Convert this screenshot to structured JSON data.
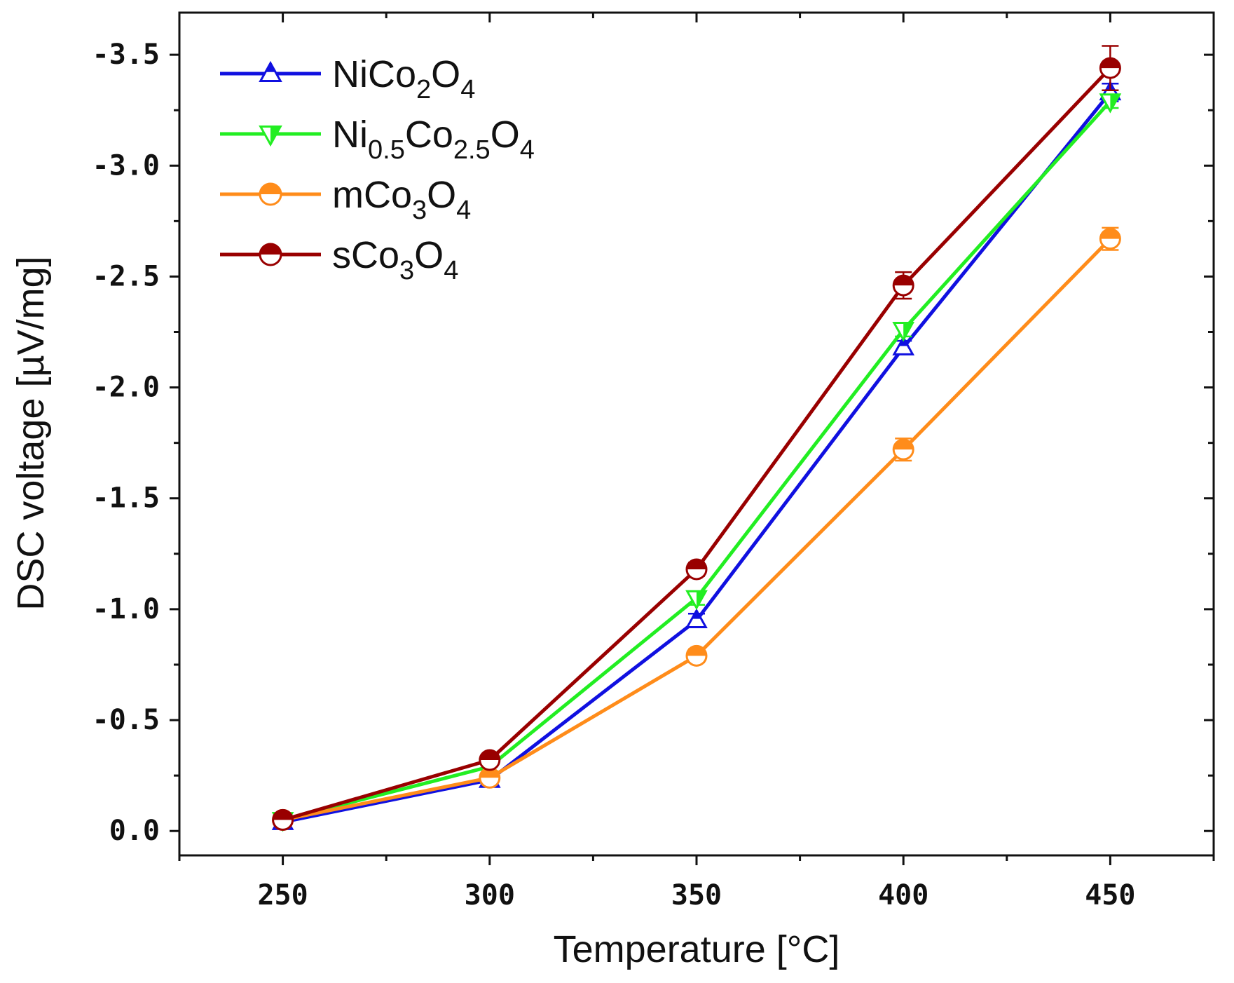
{
  "chart_data": {
    "type": "line",
    "title": "",
    "xlabel": "Temperature [°C]",
    "ylabel": "DSC voltage [µV/mg]",
    "x": [
      250,
      300,
      350,
      400,
      450
    ],
    "xlim": [
      225,
      475
    ],
    "ylim": [
      0.11,
      -3.69
    ],
    "xticks": [
      250,
      300,
      350,
      400,
      450
    ],
    "xtick_labels": [
      "250",
      "300",
      "350",
      "400",
      "450"
    ],
    "yticks": [
      0,
      -0.5,
      -1.0,
      -1.5,
      -2.0,
      -2.5,
      -3.0,
      -3.5
    ],
    "ytick_labels": [
      "0.0",
      "-0.5",
      "-1.0",
      "-1.5",
      "-2.0",
      "-2.5",
      "-3.0",
      "-3.5"
    ],
    "grid": false,
    "legend_position": "top-left",
    "series": [
      {
        "name": "NiCo2O4",
        "legend_parts": [
          [
            "Ni",
            "n"
          ],
          [
            "Co",
            "n"
          ],
          [
            "2",
            "s"
          ],
          [
            "O",
            "n"
          ],
          [
            "4",
            "s"
          ]
        ],
        "color": "#1010e0",
        "marker": "triangle-up",
        "values": [
          -0.04,
          -0.23,
          -0.95,
          -2.18,
          -3.33
        ],
        "errors": [
          0.01,
          0.02,
          0.03,
          0.03,
          0.04
        ]
      },
      {
        "name": "Ni0.5Co2.5O4",
        "legend_parts": [
          [
            "Ni",
            "n"
          ],
          [
            "0.5",
            "s"
          ],
          [
            "Co",
            "n"
          ],
          [
            "2.5",
            "s"
          ],
          [
            "O",
            "n"
          ],
          [
            "4",
            "s"
          ]
        ],
        "color": "#22ee22",
        "marker": "triangle-down",
        "values": [
          -0.05,
          -0.29,
          -1.05,
          -2.26,
          -3.29
        ],
        "errors": [
          0.02,
          0.02,
          0.03,
          0.03,
          0.03
        ]
      },
      {
        "name": "mCo3O4",
        "legend_parts": [
          [
            "mCo",
            "n"
          ],
          [
            "3",
            "s"
          ],
          [
            "O",
            "n"
          ],
          [
            "4",
            "s"
          ]
        ],
        "color": "#ff8c1a",
        "marker": "circle-half",
        "values": [
          -0.05,
          -0.24,
          -0.79,
          -1.72,
          -2.67
        ],
        "errors": [
          0.01,
          0.02,
          0.03,
          0.05,
          0.05
        ]
      },
      {
        "name": "sCo3O4",
        "legend_parts": [
          [
            "sCo",
            "n"
          ],
          [
            "3",
            "s"
          ],
          [
            "O",
            "n"
          ],
          [
            "4",
            "s"
          ]
        ],
        "color": "#990000",
        "marker": "circle-half",
        "values": [
          -0.05,
          -0.32,
          -1.18,
          -2.46,
          -3.44
        ],
        "errors": [
          0.01,
          0.02,
          0.03,
          0.06,
          0.1
        ]
      }
    ]
  }
}
